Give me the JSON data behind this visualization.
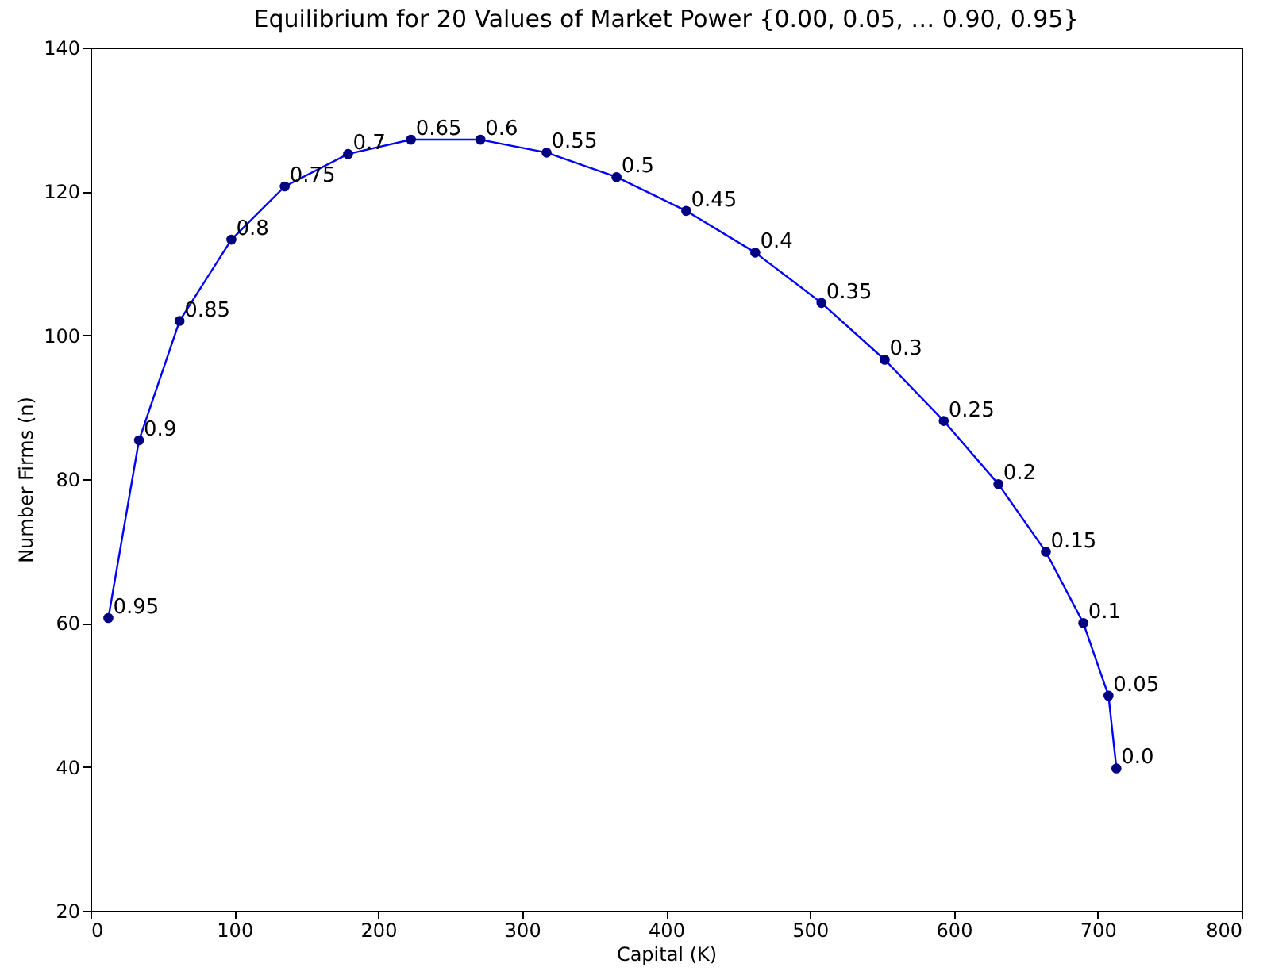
{
  "chart_data": {
    "type": "line",
    "title": "Equilibrium for 20 Values of Market Power {0.00,  0.05,  …  0.90,  0.95}",
    "xlabel": "Capital (K)",
    "ylabel": "Number Firms (n)",
    "x": [
      12.4,
      33.7,
      61.9,
      97.9,
      135,
      179,
      222.7,
      271,
      317,
      365.6,
      414,
      462,
      508,
      552,
      593,
      631,
      664,
      690,
      707.5,
      713
    ],
    "series": [
      {
        "color": "#0000ff",
        "values": [
          60.7,
          85.4,
          102,
          113.3,
          120.7,
          125.2,
          127.2,
          127.2,
          125.4,
          122,
          117.3,
          111.5,
          104.5,
          96.6,
          88.1,
          79.3,
          69.9,
          60,
          49.9,
          39.8
        ]
      }
    ],
    "annotations": [
      {
        "text": "0.95",
        "x": 12.4,
        "y": 60.7
      },
      {
        "text": "0.9",
        "x": 33.7,
        "y": 85.4
      },
      {
        "text": "0.85",
        "x": 61.9,
        "y": 102
      },
      {
        "text": "0.8",
        "x": 97.9,
        "y": 113.3
      },
      {
        "text": "0.75",
        "x": 135,
        "y": 120.7
      },
      {
        "text": "0.7",
        "x": 179,
        "y": 125.2
      },
      {
        "text": "0.65",
        "x": 222.7,
        "y": 127.2
      },
      {
        "text": "0.6",
        "x": 271,
        "y": 127.2
      },
      {
        "text": "0.55",
        "x": 317,
        "y": 125.4
      },
      {
        "text": "0.5",
        "x": 365.6,
        "y": 122
      },
      {
        "text": "0.45",
        "x": 414,
        "y": 117.3
      },
      {
        "text": "0.4",
        "x": 462,
        "y": 111.5
      },
      {
        "text": "0.35",
        "x": 508,
        "y": 104.5
      },
      {
        "text": "0.3",
        "x": 552,
        "y": 96.6
      },
      {
        "text": "0.25",
        "x": 593,
        "y": 88.1
      },
      {
        "text": "0.2",
        "x": 631,
        "y": 79.3
      },
      {
        "text": "0.15",
        "x": 664,
        "y": 69.9
      },
      {
        "text": "0.1",
        "x": 690,
        "y": 60
      },
      {
        "text": "0.05",
        "x": 707.5,
        "y": 49.9
      },
      {
        "text": "0.0",
        "x": 713,
        "y": 39.8
      }
    ],
    "xlim": [
      0,
      800
    ],
    "xticks": [
      0,
      100,
      200,
      300,
      400,
      500,
      600,
      700,
      800
    ],
    "ylim": [
      20,
      140
    ],
    "yticks": [
      20,
      40,
      60,
      80,
      100,
      120,
      140
    ],
    "grid": false,
    "marker": "circle",
    "line_style": "solid"
  }
}
